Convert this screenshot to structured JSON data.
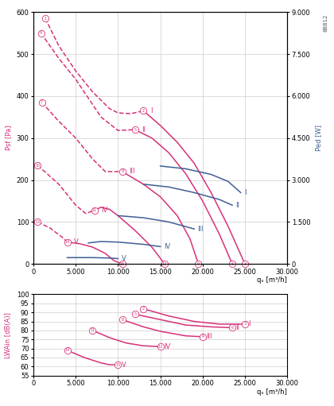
{
  "chart_data": [
    {
      "type": "line",
      "annotation_text": "88812",
      "x_label": "qᵥ [m³/h]",
      "y_label": "Psf [Pa]",
      "y2_label": "Ped [W]",
      "xlim": [
        0,
        30000
      ],
      "xticks": [
        0,
        {
          "value": 5000,
          "label": "5.000"
        },
        {
          "value": 10000,
          "label": "10.000"
        },
        {
          "value": 15000,
          "label": "15.000"
        },
        {
          "value": 20000,
          "label": "20.000"
        },
        {
          "value": 25000,
          "label": "25.000"
        },
        {
          "value": 30000,
          "label": "30.000"
        }
      ],
      "ylim": [
        0,
        600
      ],
      "yticks": [
        0,
        100,
        200,
        300,
        400,
        500,
        600
      ],
      "y2lim": [
        0,
        9000
      ],
      "y2ticks": [
        0,
        {
          "value": 1500,
          "label": "1.500"
        },
        {
          "value": 3000,
          "label": "3.000"
        },
        {
          "value": 4500,
          "label": "4.500"
        },
        {
          "value": 6000,
          "label": "6.000"
        },
        {
          "value": 7500,
          "label": "7.500"
        },
        {
          "value": 9000,
          "label": "9.000"
        }
      ],
      "grid": true,
      "series": [
        {
          "color": "#d6317a",
          "line_style": "dashed",
          "x": [
            1400,
            3000,
            5000,
            7000,
            9000,
            10000,
            11500,
            13000
          ],
          "values": [
            585,
            520,
            460,
            410,
            370,
            360,
            358,
            365
          ]
        },
        {
          "name": "I",
          "color": "#d6317a",
          "line_style": "solid",
          "x": [
            13000,
            15000,
            17000,
            19000,
            21000,
            23000,
            25000
          ],
          "values": [
            365,
            330,
            290,
            240,
            170,
            90,
            0
          ]
        },
        {
          "color": "#d6317a",
          "line_style": "dashed",
          "x": [
            900,
            3000,
            5000,
            8000,
            10000,
            12000
          ],
          "values": [
            550,
            490,
            440,
            350,
            318,
            320
          ]
        },
        {
          "name": "II",
          "color": "#d6317a",
          "line_style": "solid",
          "x": [
            12000,
            14000,
            16000,
            18000,
            20000,
            22000,
            23500
          ],
          "values": [
            320,
            300,
            265,
            215,
            150,
            70,
            0
          ]
        },
        {
          "color": "#d6317a",
          "line_style": "dashed",
          "x": [
            1000,
            3000,
            5000,
            7000,
            8500,
            10500
          ],
          "values": [
            385,
            340,
            300,
            250,
            220,
            220
          ]
        },
        {
          "name": "III",
          "color": "#d6317a",
          "line_style": "solid",
          "x": [
            10500,
            13000,
            15000,
            17000,
            18500,
            19500
          ],
          "values": [
            220,
            190,
            160,
            115,
            60,
            0
          ]
        },
        {
          "color": "#d6317a",
          "line_style": "dashed",
          "x": [
            500,
            3000,
            5000,
            6200,
            7200
          ],
          "values": [
            235,
            190,
            140,
            120,
            128
          ]
        },
        {
          "name": "IV",
          "color": "#d6317a",
          "line_style": "solid",
          "x": [
            7200,
            8000,
            9000,
            10000,
            12000,
            14000,
            15500
          ],
          "values": [
            128,
            135,
            130,
            115,
            80,
            40,
            0
          ]
        },
        {
          "color": "#d6317a",
          "line_style": "dashed",
          "x": [
            500,
            2000,
            3500,
            4000
          ],
          "values": [
            100,
            85,
            62,
            52
          ]
        },
        {
          "name": "V",
          "color": "#d6317a",
          "line_style": "solid",
          "x": [
            4000,
            5500,
            7000,
            8500,
            9500,
            10500
          ],
          "values": [
            52,
            48,
            40,
            25,
            8,
            0
          ]
        },
        {
          "name": "I",
          "color": "#3d5f95",
          "line_style": "solid",
          "axis": "y2",
          "x": [
            15000,
            18000,
            21000,
            23000,
            24500
          ],
          "values": [
            3500,
            3400,
            3200,
            2950,
            2550
          ]
        },
        {
          "name": "II",
          "color": "#3d5f95",
          "line_style": "solid",
          "axis": "y2",
          "x": [
            13000,
            16000,
            19000,
            22000,
            23500
          ],
          "values": [
            2850,
            2750,
            2550,
            2300,
            2100
          ]
        },
        {
          "name": "III",
          "color": "#3d5f95",
          "line_style": "solid",
          "axis": "y2",
          "x": [
            10000,
            13000,
            16000,
            19000
          ],
          "values": [
            1725,
            1650,
            1500,
            1250
          ]
        },
        {
          "name": "IV",
          "color": "#3d5f95",
          "line_style": "solid",
          "axis": "y2",
          "x": [
            6500,
            8000,
            10000,
            13000,
            15000
          ],
          "values": [
            750,
            800,
            780,
            700,
            620
          ]
        },
        {
          "name": "V",
          "color": "#3d5f95",
          "line_style": "solid",
          "axis": "y2",
          "x": [
            4000,
            7000,
            9000,
            10000
          ],
          "values": [
            225,
            225,
            210,
            190
          ]
        }
      ],
      "annotations": [
        {
          "text": "1",
          "x": 1400,
          "y": 585
        },
        {
          "text": "2",
          "x": 13000,
          "y": 365
        },
        {
          "text": "3",
          "x": 25000,
          "y": 0
        },
        {
          "text": "4",
          "x": 900,
          "y": 550
        },
        {
          "text": "5",
          "x": 12000,
          "y": 320
        },
        {
          "text": "6",
          "x": 23500,
          "y": 0
        },
        {
          "text": "7",
          "x": 1000,
          "y": 385
        },
        {
          "text": "8",
          "x": 10500,
          "y": 220
        },
        {
          "text": "9",
          "x": 19500,
          "y": 0
        },
        {
          "text": "10",
          "x": 500,
          "y": 235
        },
        {
          "text": "11",
          "x": 7200,
          "y": 128
        },
        {
          "text": "12",
          "x": 15500,
          "y": 0
        },
        {
          "text": "13",
          "x": 500,
          "y": 100
        },
        {
          "text": "14",
          "x": 4000,
          "y": 52
        },
        {
          "text": "15",
          "x": 10500,
          "y": 0
        }
      ]
    },
    {
      "type": "line",
      "x_label": "qᵥ [m³/h]",
      "y_label": "LWAin [dB(A)]",
      "xlim": [
        0,
        30000
      ],
      "xticks": [
        0,
        {
          "value": 5000,
          "label": "5.000"
        },
        {
          "value": 10000,
          "label": "10.000"
        },
        {
          "value": 15000,
          "label": "15.000"
        },
        {
          "value": 20000,
          "label": "20.000"
        },
        {
          "value": 25000,
          "label": "25.000"
        },
        {
          "value": 30000,
          "label": "30.000"
        }
      ],
      "ylim": [
        55,
        100
      ],
      "yticks": [
        55,
        60,
        65,
        70,
        75,
        80,
        85,
        90,
        95,
        100
      ],
      "grid": true,
      "series": [
        {
          "name": "I",
          "color": "#d6317a",
          "line_style": "solid",
          "x": [
            13000,
            16000,
            19000,
            22000,
            25000
          ],
          "values": [
            92,
            88,
            85,
            83.5,
            83.5
          ]
        },
        {
          "name": "II",
          "color": "#d6317a",
          "line_style": "solid",
          "x": [
            12000,
            15000,
            18000,
            21000,
            23500
          ],
          "values": [
            89,
            86,
            83,
            82,
            81.5
          ]
        },
        {
          "name": "III",
          "color": "#d6317a",
          "line_style": "solid",
          "x": [
            10500,
            13000,
            15000,
            18000,
            20000
          ],
          "values": [
            86,
            82,
            79.5,
            77,
            76.5
          ]
        },
        {
          "name": "IV",
          "color": "#d6317a",
          "line_style": "solid",
          "x": [
            7000,
            9000,
            11000,
            13000,
            15000
          ],
          "values": [
            80,
            76,
            73,
            71.5,
            71
          ]
        },
        {
          "name": "V",
          "color": "#d6317a",
          "line_style": "solid",
          "x": [
            4000,
            6000,
            8000,
            9000,
            10000
          ],
          "values": [
            69,
            65,
            62,
            61,
            61
          ]
        }
      ],
      "annotations": [
        {
          "text": "2",
          "x": 13000,
          "y": 92
        },
        {
          "text": "3",
          "x": 25000,
          "y": 83.5
        },
        {
          "text": "5",
          "x": 12000,
          "y": 89
        },
        {
          "text": "6",
          "x": 23500,
          "y": 81.5
        },
        {
          "text": "8",
          "x": 10500,
          "y": 86
        },
        {
          "text": "9",
          "x": 20000,
          "y": 76.5
        },
        {
          "text": "11",
          "x": 7000,
          "y": 80
        },
        {
          "text": "12",
          "x": 15000,
          "y": 71
        },
        {
          "text": "14",
          "x": 4000,
          "y": 69
        },
        {
          "text": "15",
          "x": 10000,
          "y": 61
        }
      ]
    }
  ]
}
